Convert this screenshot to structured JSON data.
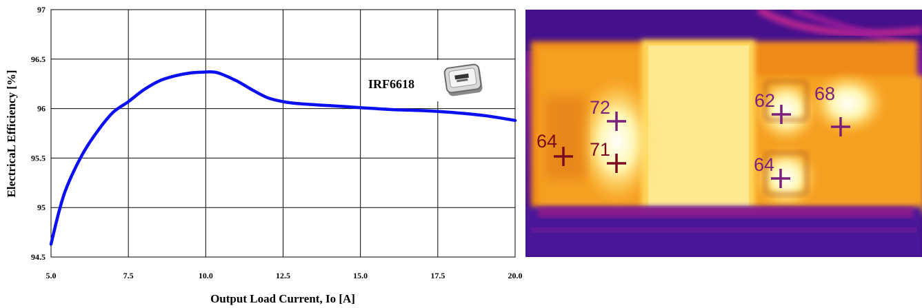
{
  "chart_data": {
    "type": "line",
    "title": "",
    "xlabel": "Output Load Current, Io [A]",
    "ylabel": "ElectricaL Efficiency [%]",
    "xlim": [
      5.0,
      20.0
    ],
    "ylim": [
      94.5,
      97.0
    ],
    "x_ticks": [
      "5.0",
      "7.5",
      "10.0",
      "12.5",
      "15.0",
      "17.5",
      "20.0"
    ],
    "y_ticks": [
      "94.5",
      "95",
      "95.5",
      "96",
      "96.5",
      "97"
    ],
    "grid": true,
    "series": [
      {
        "color": "#0a10f0",
        "x": [
          5.0,
          5.25,
          5.5,
          6.0,
          6.5,
          7.0,
          7.5,
          8.0,
          8.5,
          9.0,
          9.5,
          10.0,
          10.25,
          10.5,
          11.0,
          11.5,
          12.0,
          12.5,
          13.0,
          14.0,
          15.0,
          16.0,
          17.0,
          18.0,
          19.0,
          20.0
        ],
        "y": [
          94.63,
          94.95,
          95.2,
          95.53,
          95.77,
          95.96,
          96.07,
          96.19,
          96.28,
          96.33,
          96.36,
          96.37,
          96.37,
          96.35,
          96.28,
          96.19,
          96.11,
          96.07,
          96.05,
          96.03,
          96.01,
          95.99,
          95.98,
          95.96,
          95.93,
          95.88
        ]
      }
    ],
    "annotations": [
      {
        "text": "IRF6618"
      }
    ]
  },
  "thermal_image": {
    "markers": [
      {
        "label": "64",
        "color": "#7a0a1e"
      },
      {
        "label": "72",
        "color": "#7a1f7a"
      },
      {
        "label": "71",
        "color": "#7a0a1e"
      },
      {
        "label": "62",
        "color": "#7a1f7a"
      },
      {
        "label": "68",
        "color": "#7a1f7a"
      },
      {
        "label": "64",
        "color": "#7a1f7a"
      }
    ]
  }
}
